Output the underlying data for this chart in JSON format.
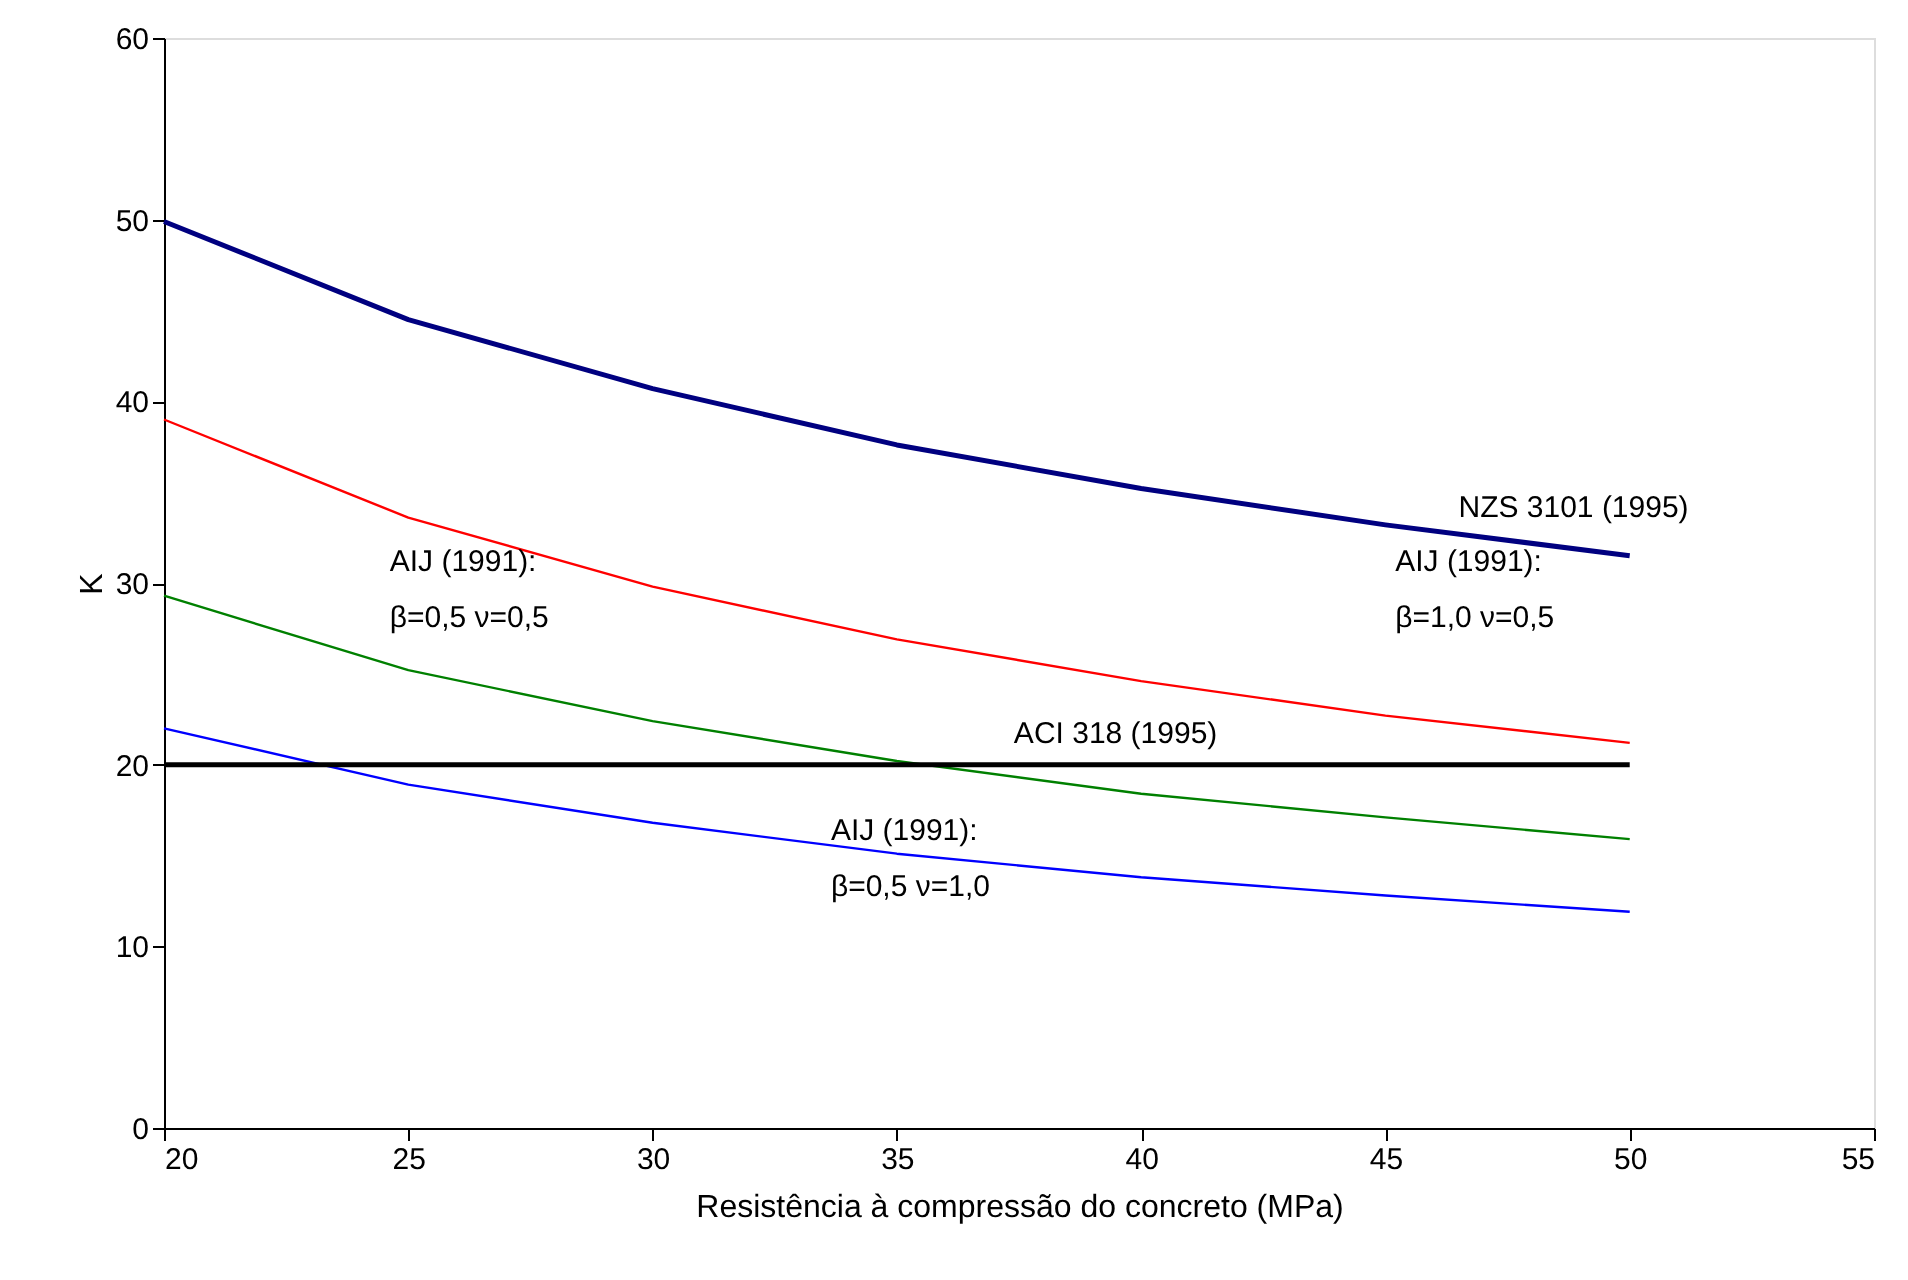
{
  "chart_data": {
    "type": "line",
    "xlabel": "Resistência à compressão do concreto (MPa)",
    "ylabel": "K",
    "x": [
      20,
      25,
      30,
      35,
      40,
      45,
      50
    ],
    "series": [
      {
        "color": "#000080",
        "values": [
          49.9,
          44.5,
          40.7,
          37.6,
          35.2,
          33.2,
          31.5
        ]
      },
      {
        "color": "#ff0000",
        "values": [
          39.0,
          33.6,
          29.8,
          26.9,
          24.6,
          22.7,
          21.2
        ]
      },
      {
        "color": "#008000",
        "values": [
          29.3,
          25.2,
          22.4,
          20.2,
          18.4,
          17.1,
          15.9
        ]
      },
      {
        "color": "#0000ff",
        "values": [
          22.0,
          18.9,
          16.8,
          15.1,
          13.8,
          12.8,
          11.9
        ]
      },
      {
        "color": "#000000",
        "values": [
          20,
          20,
          20,
          20,
          20,
          20,
          20
        ]
      }
    ],
    "annotations": [
      "NZS 3101 (1995)",
      "AIJ (1991):\nβ=1,0  ν=0,5",
      "AIJ (1991):\nβ=0,5  ν=0,5",
      "ACI 318 (1995)",
      "AIJ (1991):\nβ=0,5  ν=1,0"
    ],
    "xlim": [
      20,
      55
    ],
    "xticks": [
      20,
      25,
      30,
      35,
      40,
      45,
      50,
      55
    ],
    "ylim": [
      0,
      60
    ],
    "yticks": [
      0,
      10,
      20,
      30,
      40,
      50,
      60
    ],
    "grid": false,
    "marker": "none",
    "line_style": "solid"
  }
}
